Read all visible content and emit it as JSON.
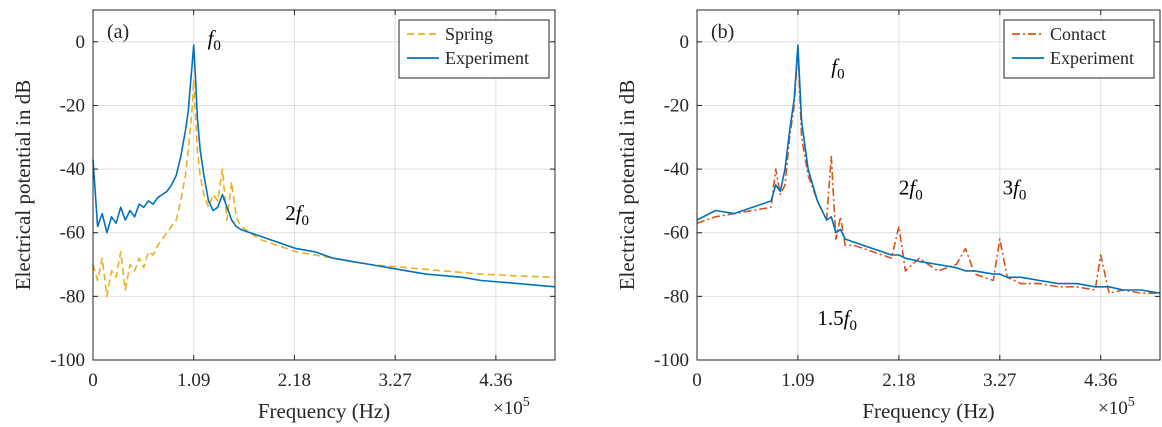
{
  "chart_data": [
    {
      "type": "line",
      "panel_label": "(a)",
      "xlabel": "Frequency (Hz)",
      "ylabel": "Electrical potential in dB",
      "x_exponent_label": "×10",
      "x_exponent_power": "5",
      "xlim": [
        0,
        5.0
      ],
      "ylim": [
        -100,
        10
      ],
      "xticks": [
        0,
        1.09,
        2.18,
        3.27,
        4.36
      ],
      "xtick_labels": [
        "0",
        "1.09",
        "2.18",
        "3.27",
        "4.36"
      ],
      "yticks": [
        0,
        -20,
        -40,
        -60,
        -80,
        -100
      ],
      "ytick_labels": [
        "0",
        "-20",
        "-40",
        "-60",
        "-80",
        "-100"
      ],
      "grid": true,
      "legend_position": "top-right",
      "annotations": [
        {
          "main": "f",
          "sub": "0",
          "x": 1.24,
          "y": -1,
          "prefix": ""
        },
        {
          "main": "f",
          "sub": "0",
          "x": 2.08,
          "y": -56,
          "prefix": "2"
        }
      ],
      "series": [
        {
          "name": "Spring",
          "style": "dashed",
          "color": "#EDB120",
          "x": [
            0.0,
            0.05,
            0.1,
            0.15,
            0.2,
            0.25,
            0.3,
            0.35,
            0.4,
            0.45,
            0.5,
            0.55,
            0.6,
            0.65,
            0.7,
            0.75,
            0.8,
            0.85,
            0.9,
            0.95,
            1.0,
            1.03,
            1.05,
            1.07,
            1.09,
            1.11,
            1.13,
            1.16,
            1.2,
            1.25,
            1.3,
            1.35,
            1.4,
            1.45,
            1.5,
            1.55,
            1.6,
            1.7,
            1.8,
            1.9,
            2.0,
            2.1,
            2.2,
            2.4,
            2.6,
            2.8,
            3.0,
            3.2,
            3.4,
            3.6,
            3.8,
            4.0,
            4.2,
            4.4,
            4.6,
            4.8,
            5.0
          ],
          "y": [
            -70,
            -75,
            -68,
            -80,
            -72,
            -74,
            -66,
            -78,
            -70,
            -72,
            -68,
            -71,
            -66,
            -67,
            -64,
            -62,
            -60,
            -58,
            -56,
            -50,
            -42,
            -34,
            -28,
            -22,
            -12,
            -24,
            -34,
            -42,
            -48,
            -52,
            -48,
            -50,
            -40,
            -56,
            -44,
            -55,
            -58,
            -60,
            -62,
            -63,
            -64,
            -65,
            -66,
            -67,
            -68,
            -69,
            -70,
            -70.5,
            -71,
            -71.5,
            -72,
            -72.5,
            -73,
            -73.3,
            -73.6,
            -73.8,
            -74
          ]
        },
        {
          "name": "Experiment",
          "style": "solid",
          "color": "#0072BD",
          "x": [
            0.0,
            0.05,
            0.1,
            0.15,
            0.2,
            0.25,
            0.3,
            0.35,
            0.4,
            0.45,
            0.5,
            0.55,
            0.6,
            0.65,
            0.7,
            0.75,
            0.8,
            0.85,
            0.9,
            0.95,
            1.0,
            1.03,
            1.05,
            1.07,
            1.09,
            1.11,
            1.13,
            1.16,
            1.2,
            1.25,
            1.3,
            1.35,
            1.4,
            1.45,
            1.5,
            1.55,
            1.6,
            1.7,
            1.8,
            1.9,
            2.0,
            2.1,
            2.2,
            2.4,
            2.6,
            2.8,
            3.0,
            3.2,
            3.4,
            3.6,
            3.8,
            4.0,
            4.2,
            4.4,
            4.6,
            4.8,
            5.0
          ],
          "y": [
            -37,
            -58,
            -54,
            -60,
            -55,
            -57,
            -52,
            -56,
            -53,
            -55,
            -51,
            -52,
            -50,
            -51,
            -49,
            -48,
            -47,
            -45,
            -42,
            -36,
            -28,
            -22,
            -15,
            -8,
            -1,
            -12,
            -24,
            -34,
            -42,
            -50,
            -53,
            -52,
            -48,
            -52,
            -56,
            -58,
            -59,
            -60,
            -61,
            -62,
            -63,
            -64,
            -65,
            -66,
            -68,
            -69,
            -70,
            -71,
            -72,
            -73,
            -73.5,
            -74,
            -75,
            -75.5,
            -76,
            -76.5,
            -77
          ]
        }
      ]
    },
    {
      "type": "line",
      "panel_label": "(b)",
      "xlabel": "Frequency (Hz)",
      "ylabel": "Electrical potential in dB",
      "x_exponent_label": "×10",
      "x_exponent_power": "5",
      "xlim": [
        0,
        5.0
      ],
      "ylim": [
        -100,
        10
      ],
      "xticks": [
        0,
        1.09,
        2.18,
        3.27,
        4.36
      ],
      "xtick_labels": [
        "0",
        "1.09",
        "2.18",
        "3.27",
        "4.36"
      ],
      "yticks": [
        0,
        -20,
        -40,
        -60,
        -80,
        -100
      ],
      "ytick_labels": [
        "0",
        "-20",
        "-40",
        "-60",
        "-80",
        "-100"
      ],
      "grid": true,
      "legend_position": "top-right",
      "annotations": [
        {
          "main": "f",
          "sub": "0",
          "x": 1.45,
          "y": -10,
          "prefix": ""
        },
        {
          "main": "f",
          "sub": "0",
          "x": 2.18,
          "y": -48,
          "prefix": "2"
        },
        {
          "main": "f",
          "sub": "0",
          "x": 3.3,
          "y": -48,
          "prefix": "3"
        },
        {
          "main": "f",
          "sub": "0",
          "x": 1.3,
          "y": -89,
          "prefix": "1.5"
        }
      ],
      "series": [
        {
          "name": "Contact",
          "style": "dashdot",
          "color": "#D95319",
          "x": [
            0.0,
            0.2,
            0.4,
            0.6,
            0.8,
            0.85,
            0.9,
            0.95,
            1.0,
            1.05,
            1.09,
            1.13,
            1.2,
            1.3,
            1.4,
            1.45,
            1.5,
            1.55,
            1.6,
            1.7,
            1.8,
            1.9,
            2.0,
            2.1,
            2.18,
            2.25,
            2.4,
            2.6,
            2.8,
            2.9,
            3.0,
            3.2,
            3.27,
            3.35,
            3.5,
            3.7,
            3.9,
            4.1,
            4.3,
            4.36,
            4.45,
            4.6,
            4.8,
            5.0
          ],
          "y": [
            -57,
            -55,
            -54,
            -53,
            -52,
            -40,
            -48,
            -45,
            -30,
            -20,
            -2,
            -30,
            -42,
            -50,
            -56,
            -36,
            -62,
            -55,
            -64,
            -64,
            -65,
            -66,
            -67,
            -68,
            -58,
            -72,
            -68,
            -72,
            -70,
            -65,
            -73,
            -75,
            -62,
            -74,
            -76,
            -76,
            -77,
            -77,
            -78,
            -67,
            -79,
            -78,
            -79,
            -79
          ]
        },
        {
          "name": "Experiment",
          "style": "solid",
          "color": "#0072BD",
          "x": [
            0.0,
            0.2,
            0.4,
            0.6,
            0.8,
            0.85,
            0.9,
            0.95,
            1.0,
            1.05,
            1.09,
            1.13,
            1.2,
            1.3,
            1.4,
            1.45,
            1.5,
            1.55,
            1.6,
            1.7,
            1.8,
            1.9,
            2.0,
            2.1,
            2.18,
            2.25,
            2.4,
            2.6,
            2.8,
            2.9,
            3.0,
            3.2,
            3.27,
            3.35,
            3.5,
            3.7,
            3.9,
            4.1,
            4.3,
            4.36,
            4.45,
            4.6,
            4.8,
            5.0
          ],
          "y": [
            -56,
            -53,
            -54,
            -52,
            -50,
            -45,
            -47,
            -40,
            -28,
            -18,
            -1,
            -25,
            -40,
            -50,
            -56,
            -55,
            -60,
            -59,
            -62,
            -63,
            -64,
            -65,
            -66,
            -67,
            -67,
            -68,
            -69,
            -70,
            -71,
            -72,
            -72,
            -73,
            -73,
            -74,
            -74,
            -75,
            -76,
            -76,
            -77,
            -77,
            -77,
            -78,
            -78,
            -79
          ]
        }
      ]
    }
  ]
}
